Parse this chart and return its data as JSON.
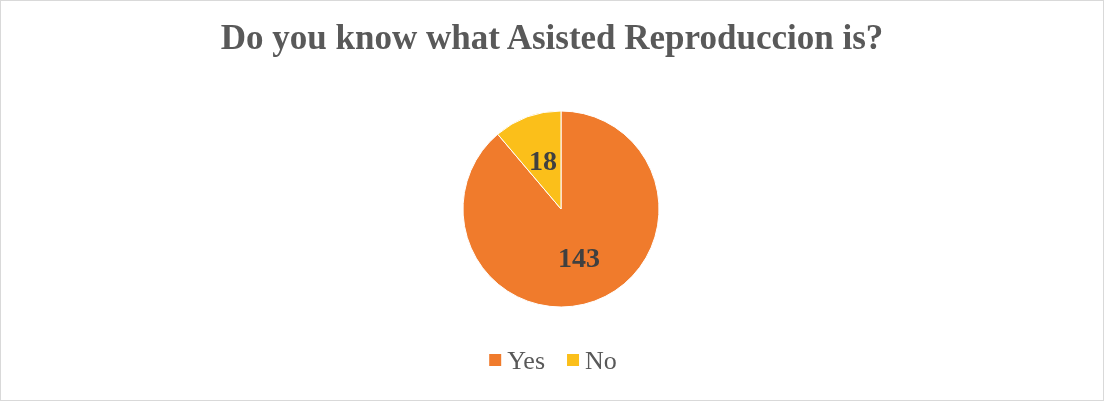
{
  "chart_data": {
    "type": "pie",
    "title": "Do you know what Asisted Reproduccion is?",
    "categories": [
      "Yes",
      "No"
    ],
    "values": [
      143,
      18
    ],
    "colors": [
      "#f07b2c",
      "#fbbf1a"
    ],
    "data_labels": true,
    "legend": "bottom"
  }
}
